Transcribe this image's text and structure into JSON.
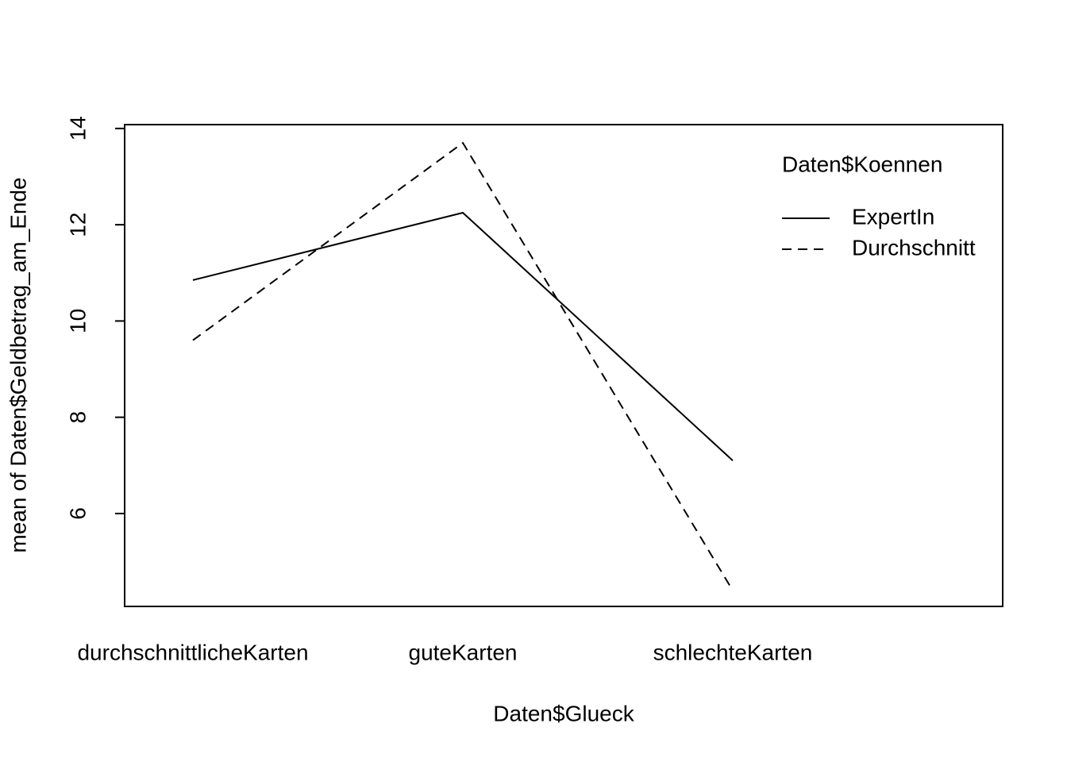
{
  "chart_data": {
    "type": "line",
    "x_label": "Daten$Glueck",
    "y_label": "mean of  Daten$Geldbetrag_am_Ende",
    "legend_title": "Daten$Koennen",
    "legend_position": "top-right",
    "categories": [
      "durchschnittlicheKarten",
      "guteKarten",
      "schlechteKarten"
    ],
    "series": [
      {
        "name": "ExpertIn",
        "color": "#000000",
        "linestyle": "solid",
        "values": [
          10.85,
          12.25,
          7.1
        ]
      },
      {
        "name": "Durchschnitt",
        "color": "#000000",
        "linestyle": "dashed",
        "values": [
          9.6,
          13.7,
          4.4
        ]
      }
    ],
    "ylim": [
      4.07,
      14.08
    ],
    "yticks": [
      6,
      8,
      10,
      12,
      14
    ],
    "grid": false
  }
}
